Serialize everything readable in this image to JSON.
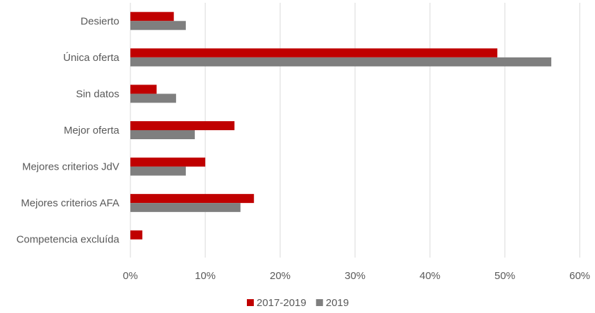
{
  "chart_data": {
    "type": "bar",
    "orientation": "horizontal",
    "categories": [
      "Desierto",
      "Única oferta",
      "Sin datos",
      "Mejor oferta",
      "Mejores criterios JdV",
      "Mejores criterios AFA",
      "Competencia excluída"
    ],
    "series": [
      {
        "name": "2017-2019",
        "color": "#c00000",
        "values": [
          5.8,
          49.0,
          3.5,
          13.9,
          10.0,
          16.5,
          1.6
        ]
      },
      {
        "name": "2019",
        "color": "#7f7f7f",
        "values": [
          7.4,
          56.2,
          6.1,
          8.6,
          7.4,
          14.7,
          0
        ]
      }
    ],
    "xlim": [
      0,
      60
    ],
    "xticks": [
      0,
      10,
      20,
      30,
      40,
      50,
      60
    ],
    "tick_format": "percent",
    "grid": true,
    "legend": "bottom-center",
    "title": "",
    "xlabel": "",
    "ylabel": ""
  }
}
